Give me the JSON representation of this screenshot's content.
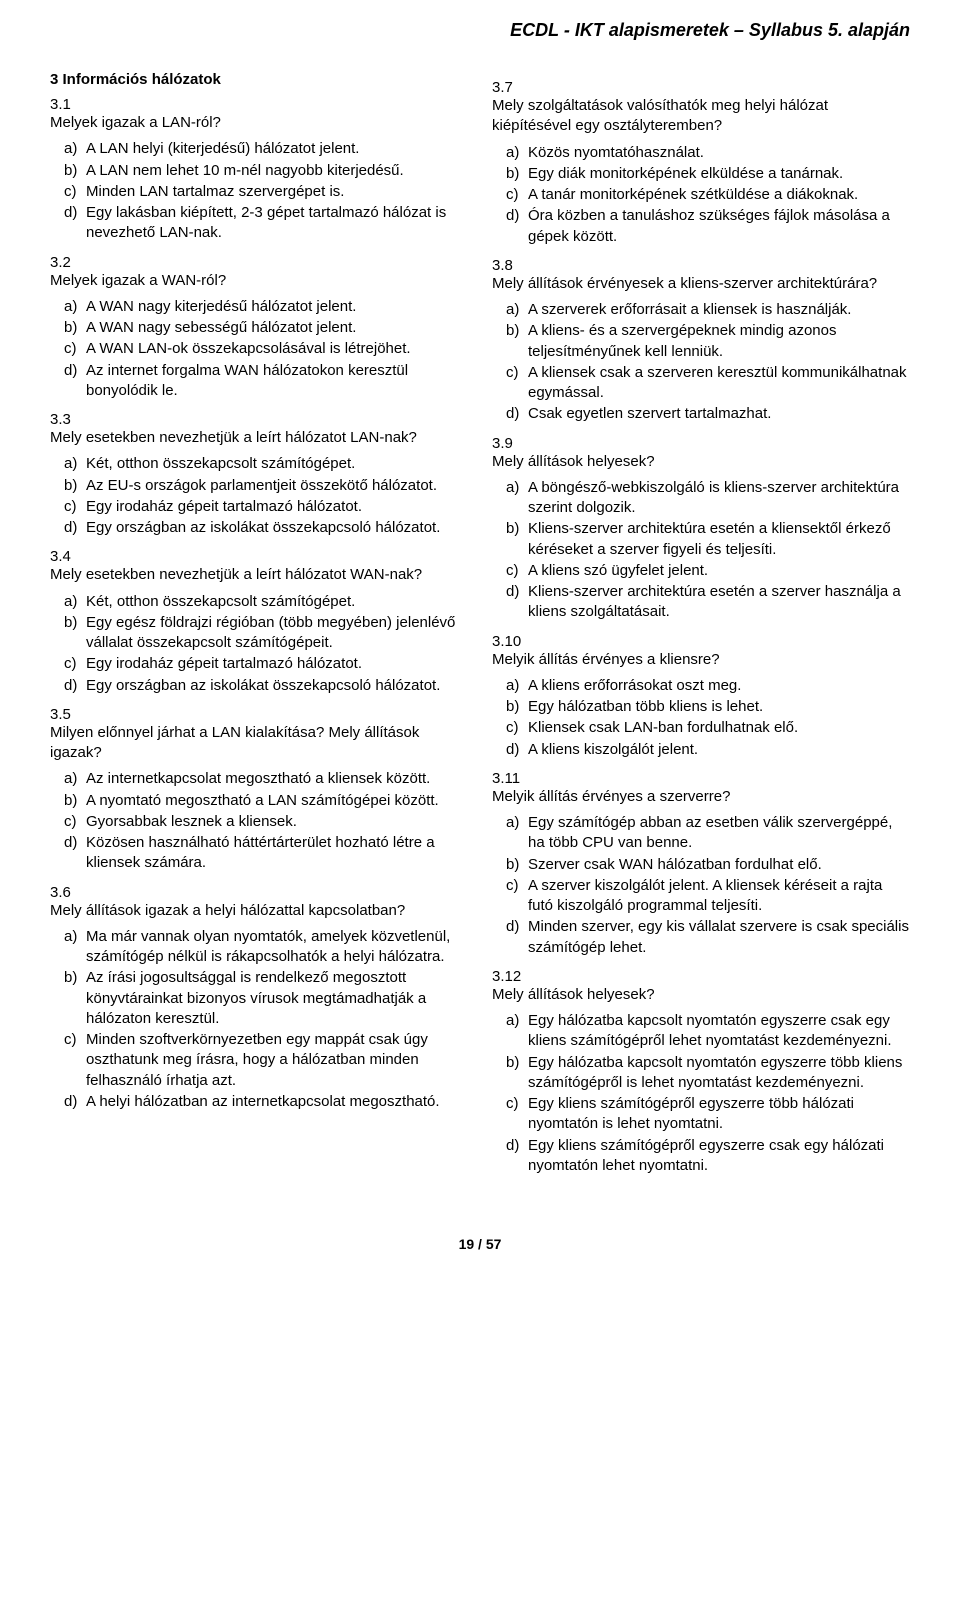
{
  "header": "ECDL - IKT alapismeretek – Syllabus 5. alapján",
  "footer": "19 / 57",
  "left": {
    "section_title": "3 Információs hálózatok",
    "items": [
      {
        "num": "3.1",
        "q": "Melyek igazak a LAN-ról?",
        "a": [
          "A LAN helyi (kiterjedésű) hálózatot jelent.",
          "A LAN nem lehet 10 m-nél nagyobb kiterjedésű.",
          "Minden LAN tartalmaz szervergépet is.",
          "Egy lakásban kiépített, 2-3 gépet tartalmazó hálózat is nevezhető LAN-nak."
        ]
      },
      {
        "num": "3.2",
        "q": "Melyek igazak a WAN-ról?",
        "a": [
          "A WAN nagy kiterjedésű hálózatot jelent.",
          "A WAN nagy sebességű hálózatot jelent.",
          "A WAN LAN-ok összekapcsolásával is létrejöhet.",
          "Az internet forgalma WAN hálózatokon keresztül bonyolódik le."
        ]
      },
      {
        "num": "3.3",
        "q": "Mely esetekben nevezhetjük a leírt hálózatot LAN-nak?",
        "a": [
          "Két, otthon összekapcsolt számítógépet.",
          "Az EU-s országok parlamentjeit összekötő hálózatot.",
          "Egy irodaház gépeit tartalmazó hálózatot.",
          "Egy országban az iskolákat összekapcsoló hálózatot."
        ]
      },
      {
        "num": "3.4",
        "q": "Mely esetekben nevezhetjük a leírt hálózatot WAN-nak?",
        "a": [
          "Két, otthon összekapcsolt számítógépet.",
          "Egy egész földrajzi régióban (több megyében) jelenlévő vállalat összekapcsolt számítógépeit.",
          "Egy irodaház gépeit tartalmazó hálózatot.",
          "Egy országban az iskolákat összekapcsoló hálózatot."
        ]
      },
      {
        "num": "3.5",
        "q": "Milyen előnnyel járhat a LAN kialakítása? Mely állítások igazak?",
        "a": [
          "Az internetkapcsolat megosztható a kliensek között.",
          "A nyomtató megosztható a LAN számítógépei között.",
          "Gyorsabbak lesznek a kliensek.",
          "Közösen használható háttértárterület hozható létre a kliensek számára."
        ]
      },
      {
        "num": "3.6",
        "q": "Mely állítások igazak a helyi hálózattal kapcsolatban?",
        "a": [
          "Ma már vannak olyan nyomtatók, amelyek közvetlenül, számítógép nélkül is rákapcsolhatók a helyi hálózatra.",
          "Az írási jogosultsággal is rendelkező megosztott könyvtárainkat bizonyos vírusok megtámadhatják a hálózaton keresztül.",
          "Minden szoftverkörnyezetben egy mappát csak úgy oszthatunk meg írásra, hogy a hálózatban minden felhasználó írhatja azt.",
          "A helyi hálózatban az internetkapcsolat megosztható."
        ]
      }
    ]
  },
  "right": {
    "items": [
      {
        "num": "3.7",
        "q": "Mely szolgáltatások valósíthatók meg helyi hálózat kiépítésével egy osztályteremben?",
        "a": [
          "Közös nyomtatóhasználat.",
          "Egy diák monitorképének elküldése a tanárnak.",
          "A tanár monitorképének szétküldése a diákoknak.",
          "Óra közben a tanuláshoz szükséges fájlok másolása a gépek között."
        ]
      },
      {
        "num": "3.8",
        "q": "Mely állítások érvényesek a kliens-szerver architektúrára?",
        "a": [
          "A szerverek erőforrásait a kliensek is használják.",
          "A kliens- és a szervergépeknek mindig azonos teljesítményűnek kell lenniük.",
          "A kliensek csak a szerveren keresztül kommunikálhatnak egymással.",
          "Csak egyetlen szervert tartalmazhat."
        ]
      },
      {
        "num": "3.9",
        "q": "Mely állítások helyesek?",
        "a": [
          "A böngésző-webkiszolgáló is kliens-szerver architektúra szerint dolgozik.",
          "Kliens-szerver architektúra esetén a kliensektől érkező kéréseket a szerver figyeli és teljesíti.",
          "A kliens szó ügyfelet jelent.",
          "Kliens-szerver architektúra esetén a szerver használja a kliens szolgáltatásait."
        ]
      },
      {
        "num": "3.10",
        "q": "Melyik állítás érvényes a kliensre?",
        "a": [
          "A kliens erőforrásokat oszt meg.",
          "Egy hálózatban több kliens is lehet.",
          "Kliensek csak LAN-ban fordulhatnak elő.",
          "A kliens kiszolgálót jelent."
        ]
      },
      {
        "num": "3.11",
        "q": "Melyik állítás érvényes a szerverre?",
        "a": [
          "Egy számítógép abban az esetben válik szervergéppé, ha több CPU van benne.",
          "Szerver csak WAN hálózatban fordulhat elő.",
          "A szerver kiszolgálót jelent. A kliensek kéréseit a rajta futó kiszolgáló programmal teljesíti.",
          "Minden szerver, egy kis vállalat szervere is csak speciális számítógép lehet."
        ]
      },
      {
        "num": "3.12",
        "q": "Mely állítások helyesek?",
        "a": [
          "Egy hálózatba kapcsolt nyomtatón egyszerre csak egy kliens számítógépről lehet nyomtatást kezdeményezni.",
          "Egy hálózatba kapcsolt nyomtatón egyszerre több kliens számítógépről is lehet nyomtatást kezdeményezni.",
          "Egy kliens számítógépről egyszerre több hálózati nyomtatón is lehet nyomtatni.",
          "Egy kliens számítógépről egyszerre csak egy hálózati nyomtatón lehet nyomtatni."
        ]
      }
    ]
  },
  "letters": [
    "a)",
    "b)",
    "c)",
    "d)"
  ]
}
